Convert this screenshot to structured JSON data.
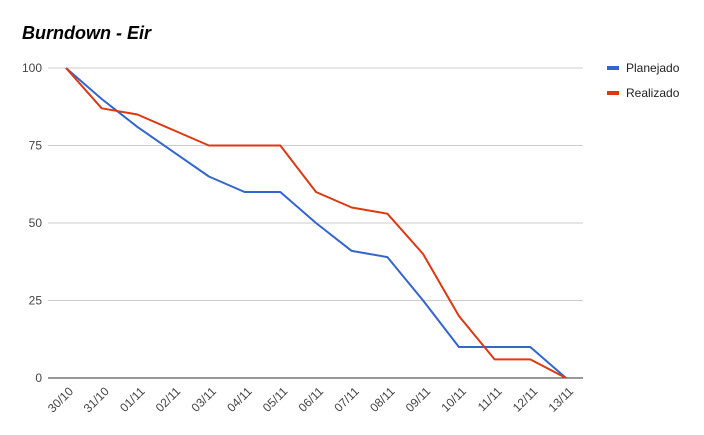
{
  "chart_data": {
    "type": "line",
    "title": "Burndown - Eir",
    "xlabel": "",
    "ylabel": "",
    "categories": [
      "30/10",
      "31/10",
      "01/11",
      "02/11",
      "03/11",
      "04/11",
      "05/11",
      "06/11",
      "07/11",
      "08/11",
      "09/11",
      "10/11",
      "11/11",
      "12/11",
      "13/11"
    ],
    "series": [
      {
        "name": "Planejado",
        "color": "#3366cc",
        "values": [
          100,
          90,
          81,
          73,
          65,
          60,
          60,
          50,
          41,
          39,
          25,
          10,
          10,
          10,
          0
        ]
      },
      {
        "name": "Realizado",
        "color": "#dc3912",
        "values": [
          100,
          87,
          85,
          80,
          75,
          75,
          75,
          60,
          55,
          53,
          40,
          20,
          6,
          6,
          0
        ]
      }
    ],
    "ylim": [
      0,
      100
    ],
    "yticks": [
      0,
      25,
      50,
      75,
      100
    ],
    "grid": true,
    "legend_position": "right"
  }
}
